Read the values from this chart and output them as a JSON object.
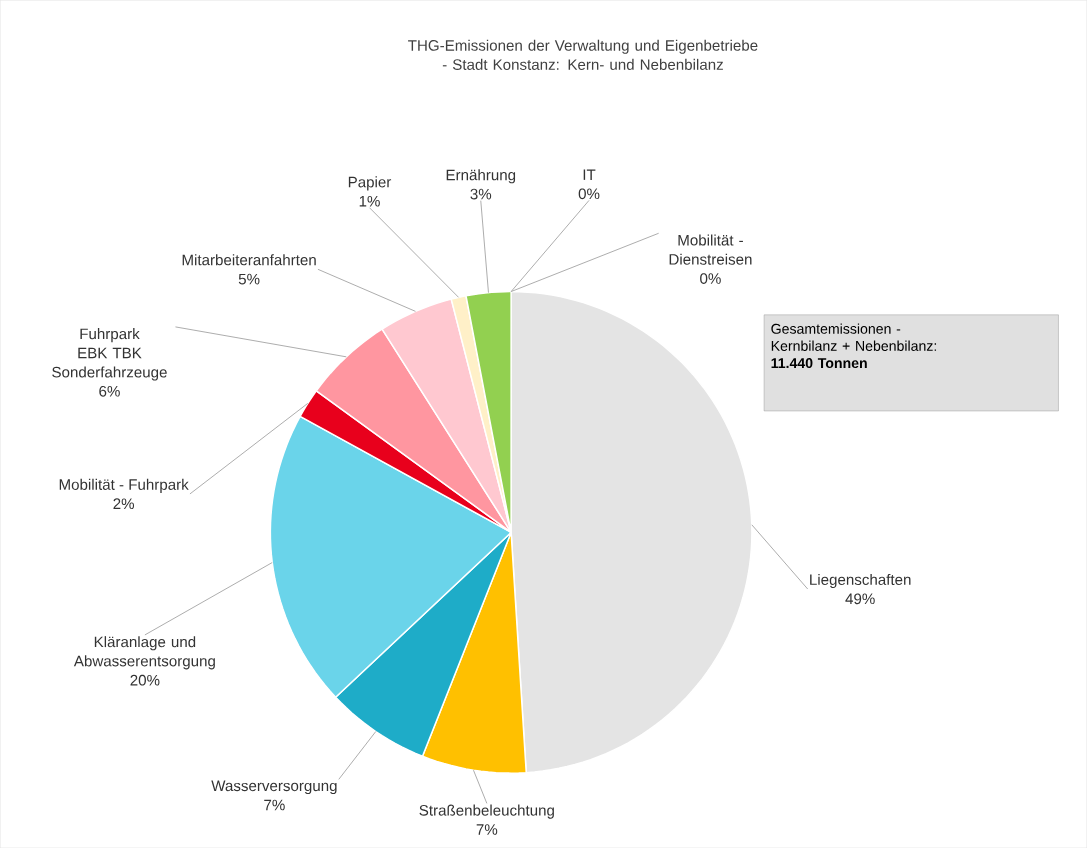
{
  "chart_data": {
    "type": "pie",
    "title": "THG-Emissionen der Verwaltung und Eigenbetriebe - Stadt Konstanz: Kern- und Nebenbilanz",
    "categories": [
      "Liegenschaften",
      "Straßenbeleuchtung",
      "Wasserversorgung",
      "Kläranlage und Abwasserentsorgung",
      "Mobilität - Fuhrpark",
      "Fuhrpark EBK TBK Sonderfahrzeuge",
      "Mitarbeiteranfahrten",
      "Papier",
      "Ernährung",
      "IT",
      "Mobilität - Dienstreisen"
    ],
    "values": [
      49,
      7,
      7,
      20,
      2,
      6,
      5,
      1,
      3,
      0,
      0
    ],
    "value_labels": [
      "49%",
      "7%",
      "7%",
      "20%",
      "2%",
      "6%",
      "5%",
      "1%",
      "3%",
      "0%",
      "0%"
    ],
    "colors": [
      "#e4e4e4",
      "#ffc000",
      "#1eacc8",
      "#6ad4ea",
      "#e8001c",
      "#ff96a0",
      "#ffc8d0",
      "#fff0c8",
      "#92d050",
      "#000000",
      "#d9d9d9"
    ],
    "annotations": [
      "Gesamtemissionen - Kernbilanz + Nebenbilanz: **11.440 Tonnen**"
    ]
  }
}
